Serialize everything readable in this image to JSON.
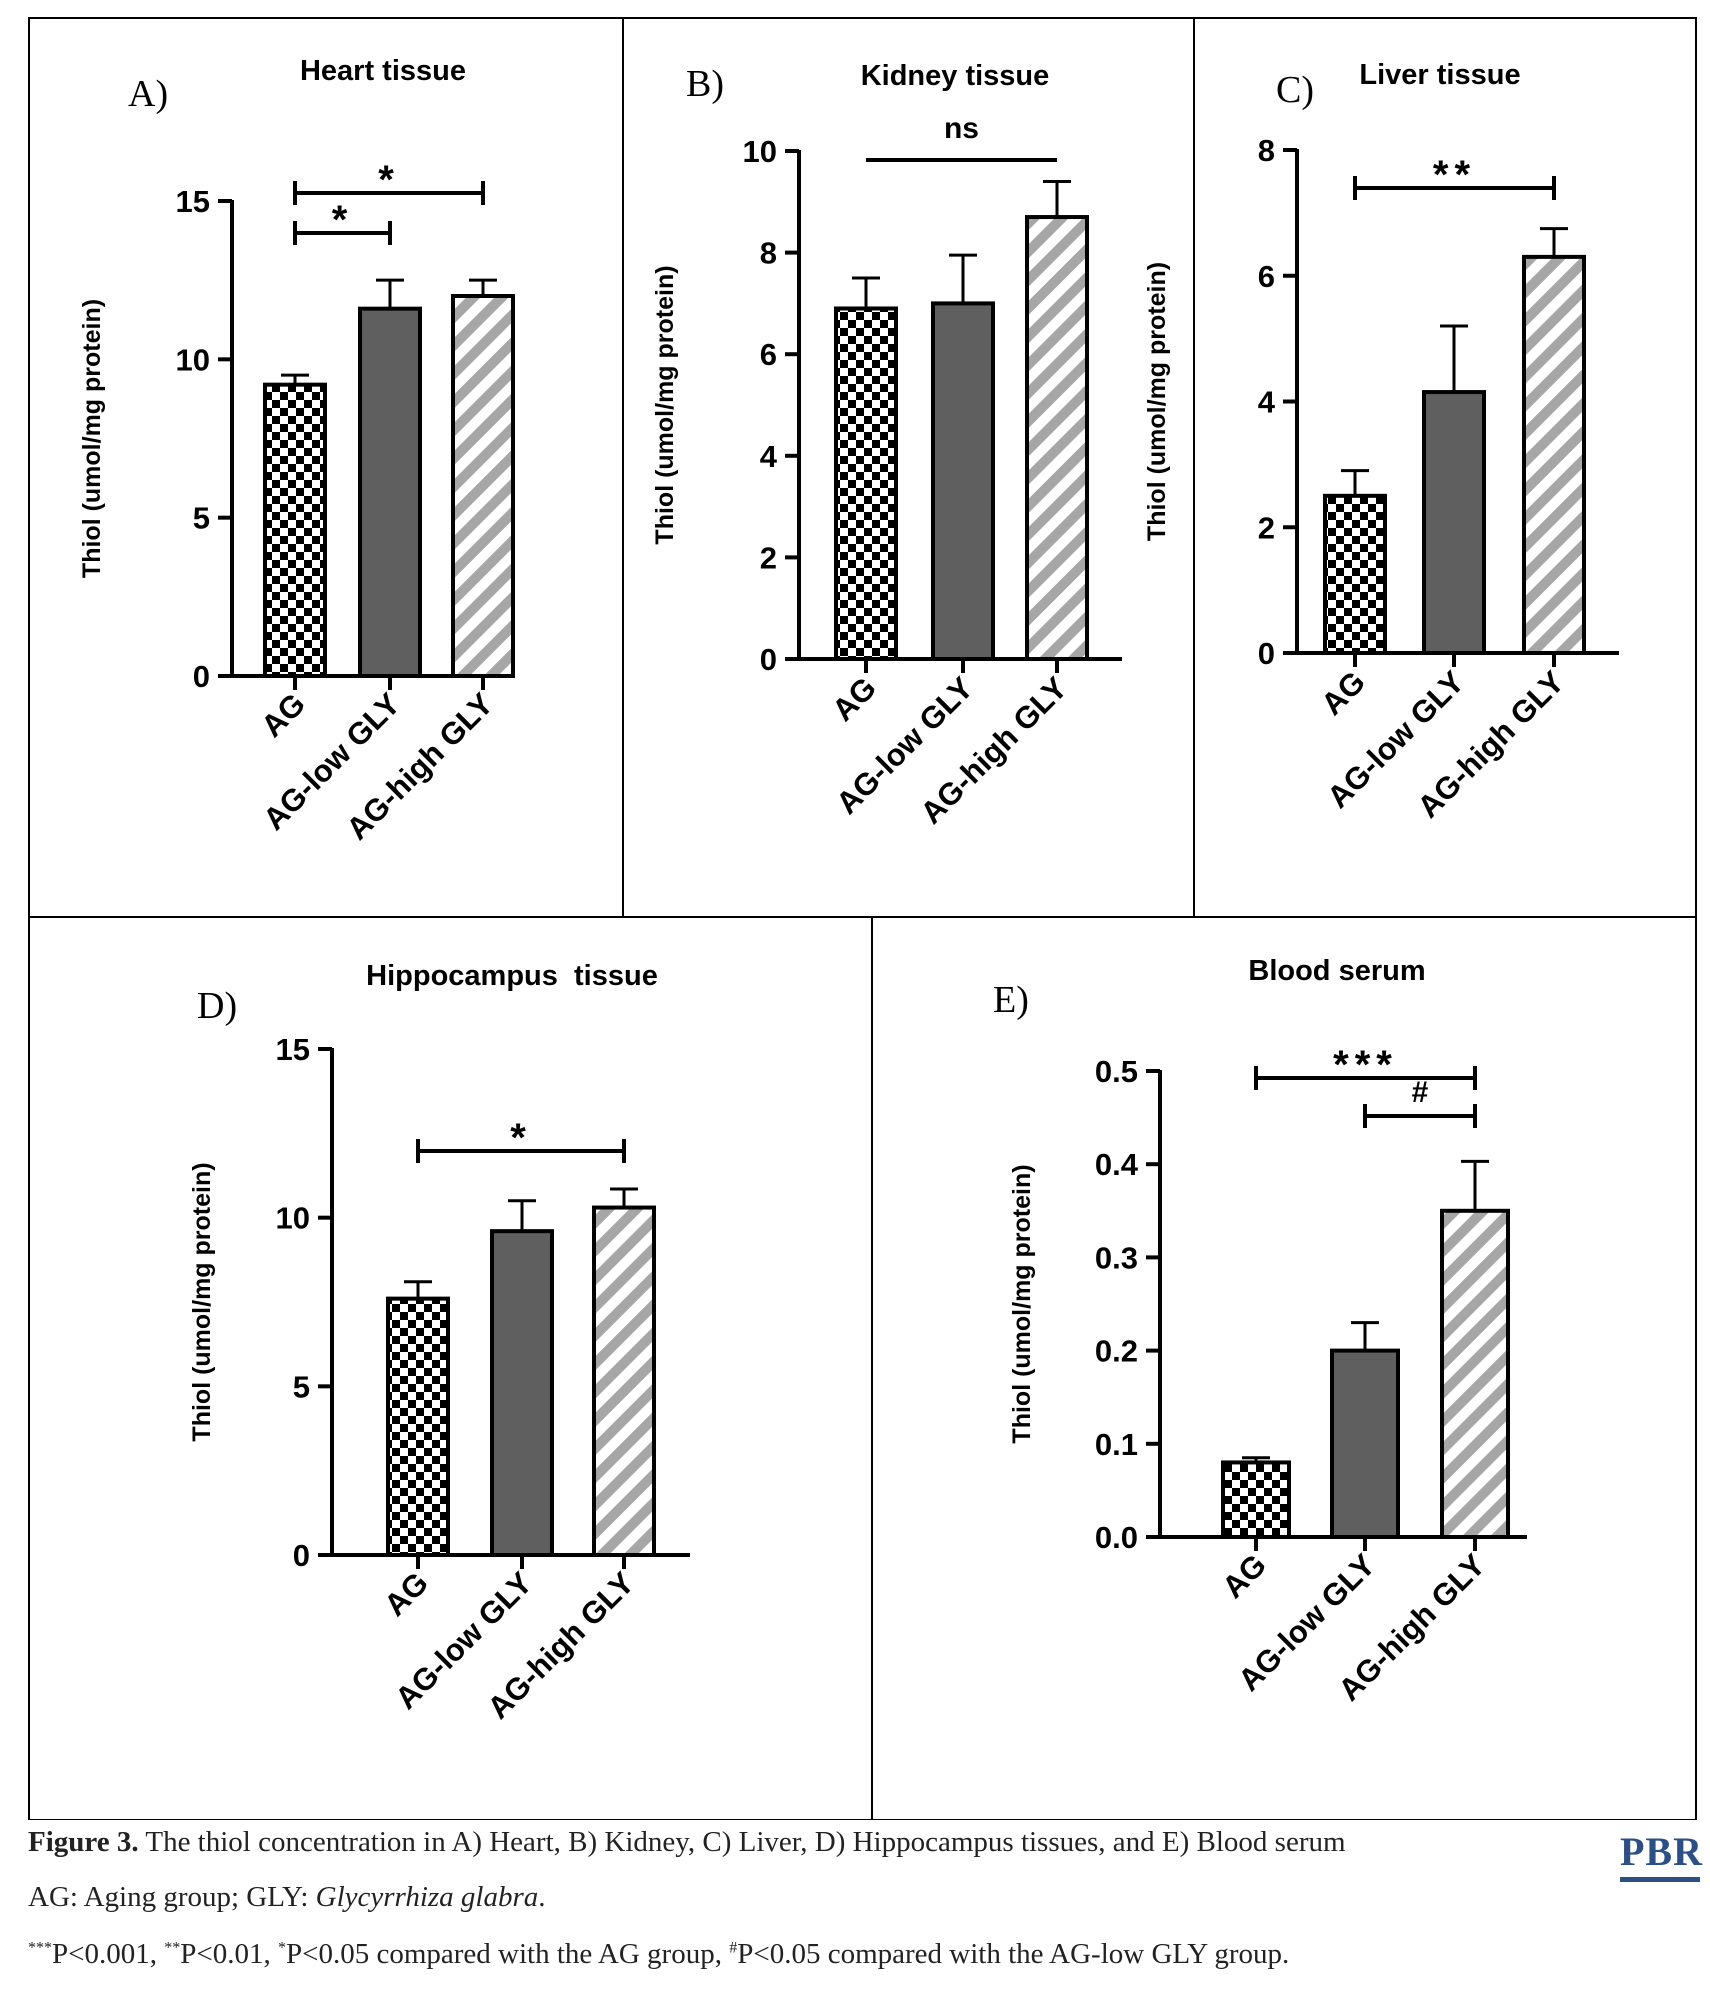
{
  "panels": [
    {
      "letter": "A)",
      "title": "Heart tissue"
    },
    {
      "letter": "B)",
      "title": "Kidney tissue"
    },
    {
      "letter": "C)",
      "title": "Liver tissue"
    },
    {
      "letter": "D)",
      "title": "Hippocampus  tissue"
    },
    {
      "letter": "E)",
      "title": "Blood serum"
    }
  ],
  "chart_data": [
    {
      "type": "bar",
      "title": "Heart tissue",
      "ylabel": "Thiol (umol/mg protein)",
      "categories": [
        "AG",
        "AG-low GLY",
        "AG-high GLY"
      ],
      "values": [
        9.2,
        11.6,
        12.0
      ],
      "error": [
        0.3,
        0.9,
        0.5
      ],
      "ylim": [
        0,
        15
      ],
      "yticks": [
        0,
        5,
        10,
        15
      ],
      "tick_labels": [
        "0",
        "5",
        "10",
        "15"
      ],
      "significance": [
        {
          "from": 0,
          "to": 2,
          "label": "*"
        },
        {
          "from": 0,
          "to": 1,
          "label": "*"
        }
      ]
    },
    {
      "type": "bar",
      "title": "Kidney tissue",
      "ylabel": "Thiol (umol/mg protein)",
      "categories": [
        "AG",
        "AG-low GLY",
        "AG-high GLY"
      ],
      "values": [
        6.9,
        7.0,
        8.7
      ],
      "error": [
        0.6,
        0.95,
        0.7
      ],
      "ylim": [
        0,
        10
      ],
      "yticks": [
        0,
        2,
        4,
        6,
        8,
        10
      ],
      "tick_labels": [
        "0",
        "2",
        "4",
        "6",
        "8",
        "10"
      ],
      "significance": [
        {
          "from": 0,
          "to": 2,
          "label": "ns"
        }
      ]
    },
    {
      "type": "bar",
      "title": "Liver tissue",
      "ylabel": "Thiol (umol/mg protein)",
      "categories": [
        "AG",
        "AG-low GLY",
        "AG-high GLY"
      ],
      "values": [
        2.5,
        4.15,
        6.3
      ],
      "error": [
        0.4,
        1.05,
        0.45
      ],
      "ylim": [
        0,
        8
      ],
      "yticks": [
        0,
        2,
        4,
        6,
        8
      ],
      "tick_labels": [
        "0",
        "2",
        "4",
        "6",
        "8"
      ],
      "significance": [
        {
          "from": 0,
          "to": 2,
          "label": "**"
        }
      ]
    },
    {
      "type": "bar",
      "title": "Hippocampus  tissue",
      "ylabel": "Thiol (umol/mg protein)",
      "categories": [
        "AG",
        "AG-low GLY",
        "AG-high GLY"
      ],
      "values": [
        7.6,
        9.6,
        10.3
      ],
      "error": [
        0.5,
        0.9,
        0.55
      ],
      "ylim": [
        0,
        15
      ],
      "yticks": [
        0,
        5,
        10,
        15
      ],
      "tick_labels": [
        "0",
        "5",
        "10",
        "15"
      ],
      "significance": [
        {
          "from": 0,
          "to": 2,
          "label": "*"
        }
      ]
    },
    {
      "type": "bar",
      "title": "Blood serum",
      "ylabel": "Thiol (umol/mg protein)",
      "categories": [
        "AG",
        "AG-low GLY",
        "AG-high GLY"
      ],
      "values": [
        0.08,
        0.2,
        0.35
      ],
      "error": [
        0.005,
        0.03,
        0.053
      ],
      "ylim": [
        0,
        0.5
      ],
      "yticks": [
        0,
        0.1,
        0.2,
        0.3,
        0.4,
        0.5
      ],
      "tick_labels": [
        "0.0",
        "0.1",
        "0.2",
        "0.3",
        "0.4",
        "0.5"
      ],
      "significance": [
        {
          "from": 0,
          "to": 2,
          "label": "***"
        },
        {
          "from": 1,
          "to": 2,
          "label": "#"
        }
      ]
    }
  ],
  "bar_fills": [
    "checker",
    "solid",
    "stripes"
  ],
  "colors": {
    "solid_bar": "#5f5f5f",
    "stripe": "#a6a6a6",
    "checker": "#000000",
    "logo": "#2c4f86"
  },
  "caption": {
    "figure_label": "Figure 3.",
    "line1": " The thiol concentration in A) Heart, B) Kidney, C) Liver, D) Hippocampus tissues, and E) Blood serum",
    "line2_prefix": "AG: Aging group; GLY: ",
    "line2_species": "Glycyrrhiza glabra",
    "line2_suffix": ".",
    "line3_p1_mark": "***",
    "line3_p1": "P<0.001, ",
    "line3_p2_mark": "**",
    "line3_p2": "P<0.01, ",
    "line3_p3_mark": "*",
    "line3_p3": "P<0.05 compared with the AG group, ",
    "line3_p4_mark": "#",
    "line3_p4": "P<0.05 compared with the AG-low GLY group."
  },
  "logo": "PBR"
}
